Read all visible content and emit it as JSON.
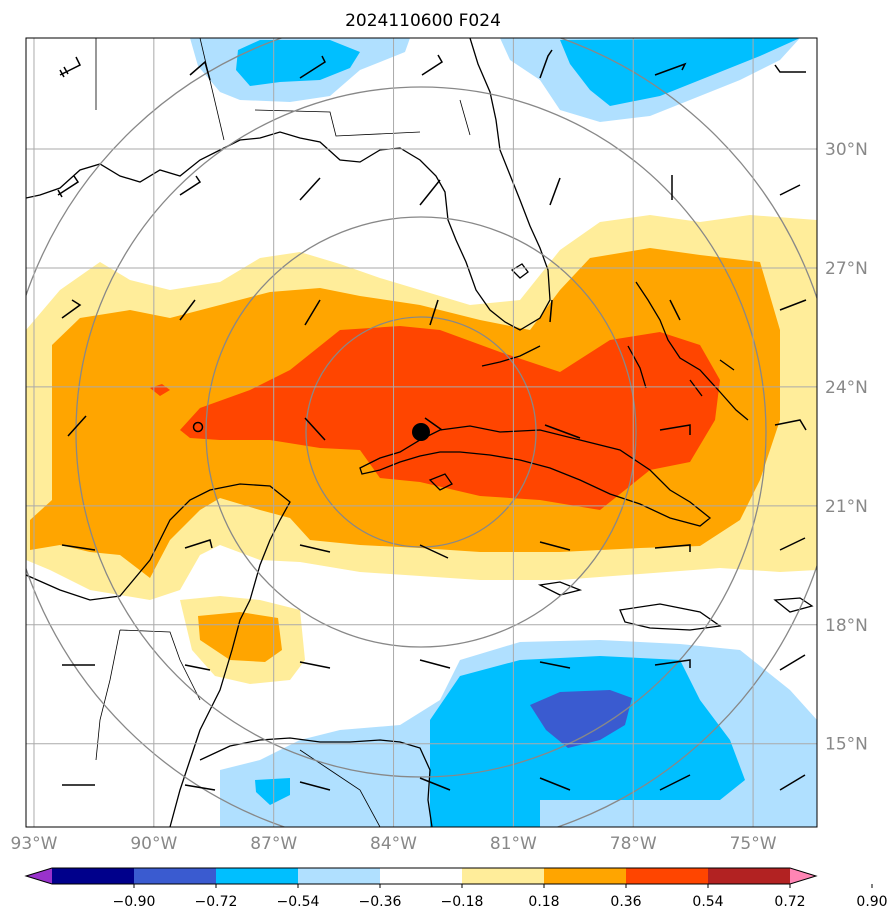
{
  "chart_data": {
    "type": "map-contour",
    "title": "2024110600 F024",
    "x_ticks": [
      "93°W",
      "90°W",
      "87°W",
      "84°W",
      "81°W",
      "78°W",
      "75°W"
    ],
    "y_ticks": [
      "30°N",
      "27°N",
      "24°N",
      "21°N",
      "18°N",
      "15°N"
    ],
    "lon_range": [
      -93.2,
      -73.4
    ],
    "lat_range": [
      12.9,
      32.8
    ],
    "center": {
      "lon": -83.3,
      "lat": 22.85
    },
    "colorbar": {
      "levels": [
        "−0.90",
        "−0.72",
        "−0.54",
        "−0.36",
        "−0.18",
        "0.18",
        "0.36",
        "0.54",
        "0.72",
        "0.90"
      ],
      "colors": [
        "#9932cc",
        "#00008b",
        "#3a5bd0",
        "#00bfff",
        "#b0e0ff",
        "#ffffff",
        "#ffed9a",
        "#ffa500",
        "#ff4500",
        "#b22222",
        "#ff85b4"
      ],
      "extend": "both"
    }
  }
}
